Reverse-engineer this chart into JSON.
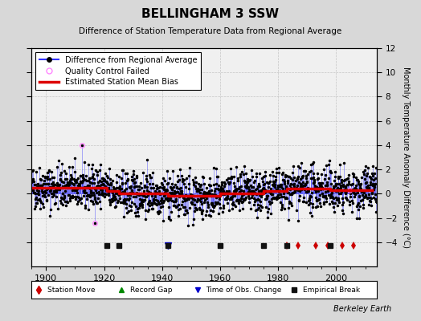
{
  "title": "BELLINGHAM 3 SSW",
  "subtitle": "Difference of Station Temperature Data from Regional Average",
  "ylabel_right": "Monthly Temperature Anomaly Difference (°C)",
  "xlim": [
    1895,
    2014
  ],
  "ylim": [
    -6,
    12
  ],
  "yticks_right": [
    -4,
    -2,
    0,
    2,
    4,
    6,
    8,
    10,
    12
  ],
  "xticks": [
    1900,
    1920,
    1940,
    1960,
    1980,
    2000
  ],
  "year_start": 1895,
  "year_end": 2013,
  "seed": 42,
  "background_color": "#d8d8d8",
  "plot_bg_color": "#f0f0f0",
  "data_line_color": "#3333ff",
  "data_marker_color": "#000000",
  "bias_line_color": "#dd0000",
  "qc_failed_color": "#ff88ff",
  "station_move_color": "#cc0000",
  "record_gap_color": "#008800",
  "tobs_color": "#0000cc",
  "empirical_color": "#111111",
  "grid_color": "#bbbbbb",
  "station_moves": [
    1983,
    1987,
    1993,
    1997,
    2002,
    2006
  ],
  "record_gaps": [],
  "tobs_changes": [
    1942
  ],
  "empirical_breaks": [
    1921,
    1925,
    1942,
    1960,
    1975,
    1983,
    1998
  ],
  "berkeley_earth_text": "Berkeley Earth",
  "legend_items": [
    "Difference from Regional Average",
    "Quality Control Failed",
    "Estimated Station Mean Bias"
  ],
  "bias_x": [
    1895,
    1921,
    1921,
    1925,
    1925,
    1942,
    1942,
    1960,
    1960,
    1975,
    1975,
    1983,
    1983,
    1998,
    1998,
    2013
  ],
  "bias_y": [
    0.5,
    0.5,
    0.2,
    0.2,
    0.0,
    0.0,
    -0.2,
    -0.2,
    0.0,
    0.0,
    0.2,
    0.2,
    0.4,
    0.4,
    0.3,
    0.3
  ]
}
